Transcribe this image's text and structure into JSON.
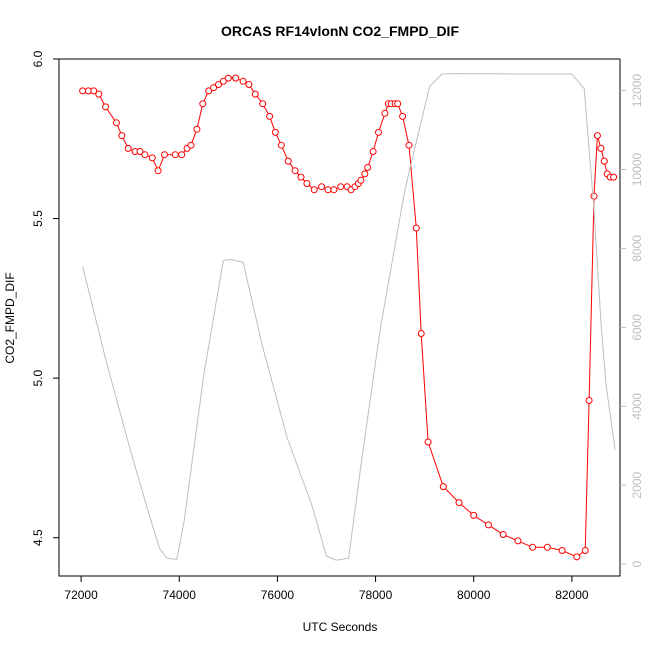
{
  "chart_data": {
    "type": "line",
    "title": "ORCAS RF14vlonN CO2_FMPD_DIF",
    "xlabel": "UTC Seconds",
    "ylabel": "CO2_FMPD_DIF",
    "xlim": [
      71550,
      82980
    ],
    "ylim": [
      4.38,
      6.0
    ],
    "y2lim": [
      -300,
      12800
    ],
    "x_ticks": [
      72000,
      74000,
      76000,
      78000,
      80000,
      82000
    ],
    "y_ticks": [
      4.5,
      5.0,
      5.5,
      6.0
    ],
    "y2_ticks": [
      0,
      2000,
      4000,
      6000,
      8000,
      10000,
      12000
    ],
    "colors": {
      "co2": "#ff0000",
      "altitude": "#bebebe",
      "axis": "#000000",
      "right_axis": "#bebebe"
    },
    "series": [
      {
        "axis": "left",
        "style": "line+open-circles",
        "x": [
          72030,
          72150,
          72260,
          72360,
          72500,
          72720,
          72830,
          72960,
          73100,
          73200,
          73300,
          73450,
          73570,
          73700,
          73920,
          74050,
          74160,
          74240,
          74360,
          74480,
          74600,
          74700,
          74800,
          74900,
          75000,
          75150,
          75300,
          75420,
          75550,
          75700,
          75840,
          75960,
          76080,
          76220,
          76360,
          76480,
          76600,
          76750,
          76900,
          77030,
          77150,
          77290,
          77420,
          77500,
          77580,
          77650,
          77700,
          77780,
          77840,
          77950,
          78060,
          78190,
          78260,
          78320,
          78400,
          78450,
          78550,
          78680,
          78830,
          78930,
          79070,
          79380,
          79700,
          80000,
          80300,
          80600,
          80900,
          81200,
          81500,
          81800,
          82100,
          82270,
          82350,
          82450,
          82520,
          82590,
          82660,
          82720,
          82780,
          82850
        ],
        "values": [
          5.9,
          5.9,
          5.9,
          5.89,
          5.85,
          5.8,
          5.76,
          5.72,
          5.71,
          5.71,
          5.7,
          5.69,
          5.65,
          5.7,
          5.7,
          5.7,
          5.72,
          5.73,
          5.78,
          5.86,
          5.9,
          5.91,
          5.92,
          5.93,
          5.94,
          5.94,
          5.93,
          5.92,
          5.89,
          5.86,
          5.82,
          5.77,
          5.73,
          5.68,
          5.65,
          5.63,
          5.61,
          5.59,
          5.6,
          5.59,
          5.59,
          5.6,
          5.6,
          5.59,
          5.6,
          5.61,
          5.62,
          5.64,
          5.66,
          5.71,
          5.77,
          5.83,
          5.86,
          5.86,
          5.86,
          5.86,
          5.82,
          5.73,
          5.47,
          5.14,
          4.8,
          4.66,
          4.61,
          4.57,
          4.54,
          4.51,
          4.49,
          4.47,
          4.47,
          4.46,
          4.44,
          4.46,
          4.93,
          5.57,
          5.76,
          5.72,
          5.68,
          5.64,
          5.63,
          5.63
        ]
      },
      {
        "axis": "right",
        "style": "line",
        "x": [
          72030,
          72500,
          73000,
          73400,
          73600,
          73750,
          73950,
          74100,
          74500,
          74900,
          75050,
          75300,
          75700,
          76200,
          76700,
          77000,
          77200,
          77450,
          77700,
          78100,
          78600,
          79100,
          79350,
          79700,
          81000,
          82000,
          82250,
          82450,
          82600,
          82700,
          82880
        ],
        "values": [
          7550,
          5200,
          2900,
          1200,
          400,
          150,
          120,
          1100,
          4800,
          7700,
          7720,
          7650,
          5500,
          3200,
          1500,
          200,
          100,
          150,
          2500,
          6000,
          9500,
          12100,
          12420,
          12430,
          12420,
          12420,
          12050,
          9000,
          6000,
          4500,
          2900
        ]
      }
    ]
  }
}
